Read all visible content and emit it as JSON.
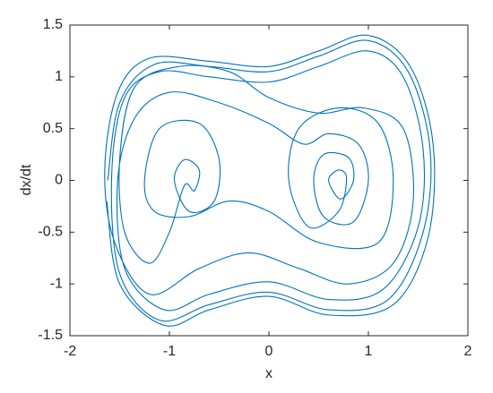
{
  "chart_data": {
    "type": "line",
    "xlabel": "x",
    "ylabel": "dx/dt",
    "xlim": [
      -2,
      2
    ],
    "ylim": [
      -1.5,
      1.5
    ],
    "xticks": [
      -2,
      -1,
      0,
      1,
      2
    ],
    "yticks": [
      -1.5,
      -1,
      -0.5,
      0,
      0.5,
      1,
      1.5
    ],
    "grid": false,
    "series": [
      {
        "color": "#0072bd",
        "x": [
          -1.62,
          -1.5,
          -1.15,
          -0.6,
          0,
          0.5,
          1.0,
          1.4,
          1.62,
          1.55,
          1.2,
          0.6,
          0,
          -0.6,
          -1.1,
          -1.5,
          -1.58,
          -1.45,
          -1.1,
          -0.6,
          0,
          0.5,
          1.0,
          1.35,
          1.55,
          1.5,
          1.15,
          0.6,
          0,
          -0.6,
          -1.05,
          -1.45,
          -1.52,
          -1.35,
          -1.0,
          -0.5,
          0,
          0.35,
          0.6,
          0.9,
          1.0,
          0.85,
          0.55,
          0.45,
          0.55,
          0.8,
          0.85,
          0.72,
          0.6,
          0.7,
          0.78,
          0.7,
          0.4,
          0.2,
          0.3,
          0.7,
          1.1,
          1.25,
          1.1,
          0.5,
          0,
          -0.4,
          -0.8,
          -1.15,
          -1.25,
          -1.1,
          -0.7,
          -0.5,
          -0.55,
          -0.8,
          -0.95,
          -0.85,
          -0.7,
          -0.75,
          -0.85,
          -1.0,
          -1.2,
          -1.45,
          -1.5,
          -1.35,
          -0.9,
          -0.4,
          0,
          0.5,
          0.95,
          1.35,
          1.45,
          1.25,
          0.8,
          0.3,
          -0.2,
          -0.7,
          -1.2,
          -1.55,
          -1.65,
          -1.52,
          -1.2,
          -0.6,
          0,
          0.5,
          1.0,
          1.42,
          1.65,
          1.6,
          1.25,
          0.6,
          0,
          -0.6,
          -1.05,
          -1.5,
          -1.63
        ],
        "values": [
          0,
          0.75,
          1.12,
          1.1,
          1.05,
          1.2,
          1.35,
          1.05,
          0.3,
          -0.5,
          -1.15,
          -1.25,
          -1.08,
          -1.2,
          -1.35,
          -0.9,
          0.05,
          0.8,
          1.05,
          1.0,
          0.95,
          1.1,
          1.25,
          1.0,
          0.3,
          -0.45,
          -1.05,
          -1.15,
          -0.98,
          -1.1,
          -1.25,
          -0.85,
          0,
          0.6,
          0.85,
          0.75,
          0.55,
          0.35,
          0.45,
          0.35,
          0,
          -0.4,
          -0.35,
          0,
          0.25,
          0.22,
          0,
          -0.18,
          0,
          0.1,
          0.02,
          -0.3,
          -0.45,
          0,
          0.5,
          0.7,
          0.55,
          0,
          -0.6,
          -0.6,
          -0.3,
          -0.2,
          -0.35,
          -0.3,
          0,
          0.5,
          0.55,
          0.2,
          -0.2,
          -0.3,
          0,
          0.2,
          0.1,
          -0.1,
          -0.05,
          -0.5,
          -0.8,
          -0.5,
          0.2,
          0.9,
          1.1,
          1.05,
          0.8,
          0.65,
          0.7,
          0.5,
          -0.2,
          -0.8,
          -1.0,
          -0.85,
          -0.7,
          -0.85,
          -1.1,
          -0.6,
          0.1,
          0.85,
          1.18,
          1.15,
          1.1,
          1.25,
          1.4,
          1.1,
          0.35,
          -0.55,
          -1.2,
          -1.3,
          -1.12,
          -1.25,
          -1.4,
          -1.0,
          -0.2
        ]
      }
    ]
  }
}
